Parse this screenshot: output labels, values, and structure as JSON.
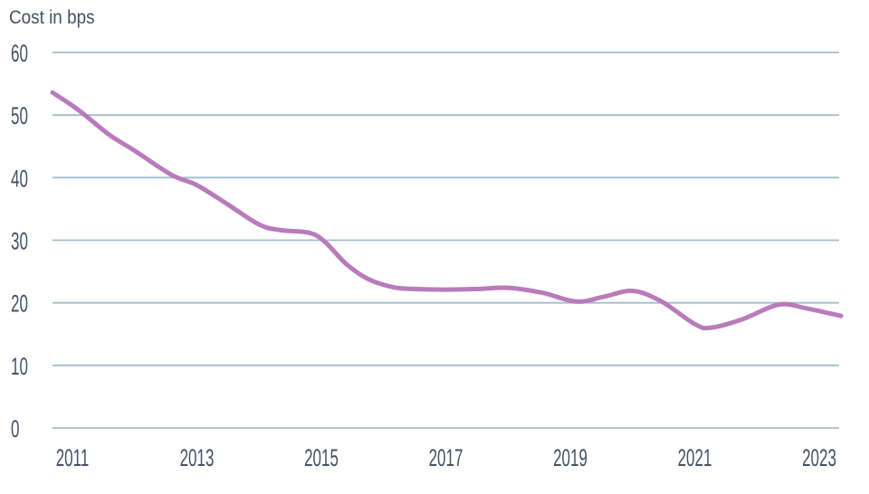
{
  "chart": {
    "title": "Cost in bps"
  },
  "chart_data": {
    "type": "line",
    "title": "Cost in bps",
    "xlabel": "",
    "ylabel": "Cost in bps",
    "x_unit": "year",
    "xlim": [
      2010.68,
      2023.4
    ],
    "ylim": [
      0,
      60
    ],
    "xticks": [
      2011,
      2013,
      2015,
      2017,
      2019,
      2021,
      2023
    ],
    "yticks": [
      0,
      10,
      20,
      30,
      40,
      50,
      60
    ],
    "grid": "horizontal-gridlines-only",
    "legend": "none",
    "series": [
      {
        "name": "Cost in bps",
        "color": "#b87bbc",
        "points": [
          [
            2010.68,
            53.6
          ],
          [
            2011.0,
            51.5
          ],
          [
            2011.2,
            50.0
          ],
          [
            2011.6,
            46.8
          ],
          [
            2012.0,
            44.3
          ],
          [
            2012.6,
            40.4
          ],
          [
            2013.0,
            38.8
          ],
          [
            2013.5,
            35.7
          ],
          [
            2014.0,
            32.5
          ],
          [
            2014.35,
            31.6
          ],
          [
            2014.8,
            31.2
          ],
          [
            2015.05,
            29.8
          ],
          [
            2015.4,
            26.2
          ],
          [
            2015.75,
            23.8
          ],
          [
            2016.15,
            22.5
          ],
          [
            2016.5,
            22.2
          ],
          [
            2017.0,
            22.1
          ],
          [
            2017.5,
            22.2
          ],
          [
            2018.0,
            22.4
          ],
          [
            2018.55,
            21.6
          ],
          [
            2019.1,
            20.2
          ],
          [
            2019.55,
            21.0
          ],
          [
            2020.0,
            21.9
          ],
          [
            2020.45,
            20.3
          ],
          [
            2021.0,
            16.6
          ],
          [
            2021.25,
            16.0
          ],
          [
            2021.75,
            17.3
          ],
          [
            2022.35,
            19.7
          ],
          [
            2022.8,
            19.1
          ],
          [
            2023.35,
            17.9
          ]
        ]
      }
    ]
  },
  "style": {
    "background": "#ffffff",
    "text_color": "#445064",
    "grid_color": "#a5bdcb",
    "line_color": "#b87bbc",
    "line_width": 5,
    "grid_width": 1.8
  }
}
